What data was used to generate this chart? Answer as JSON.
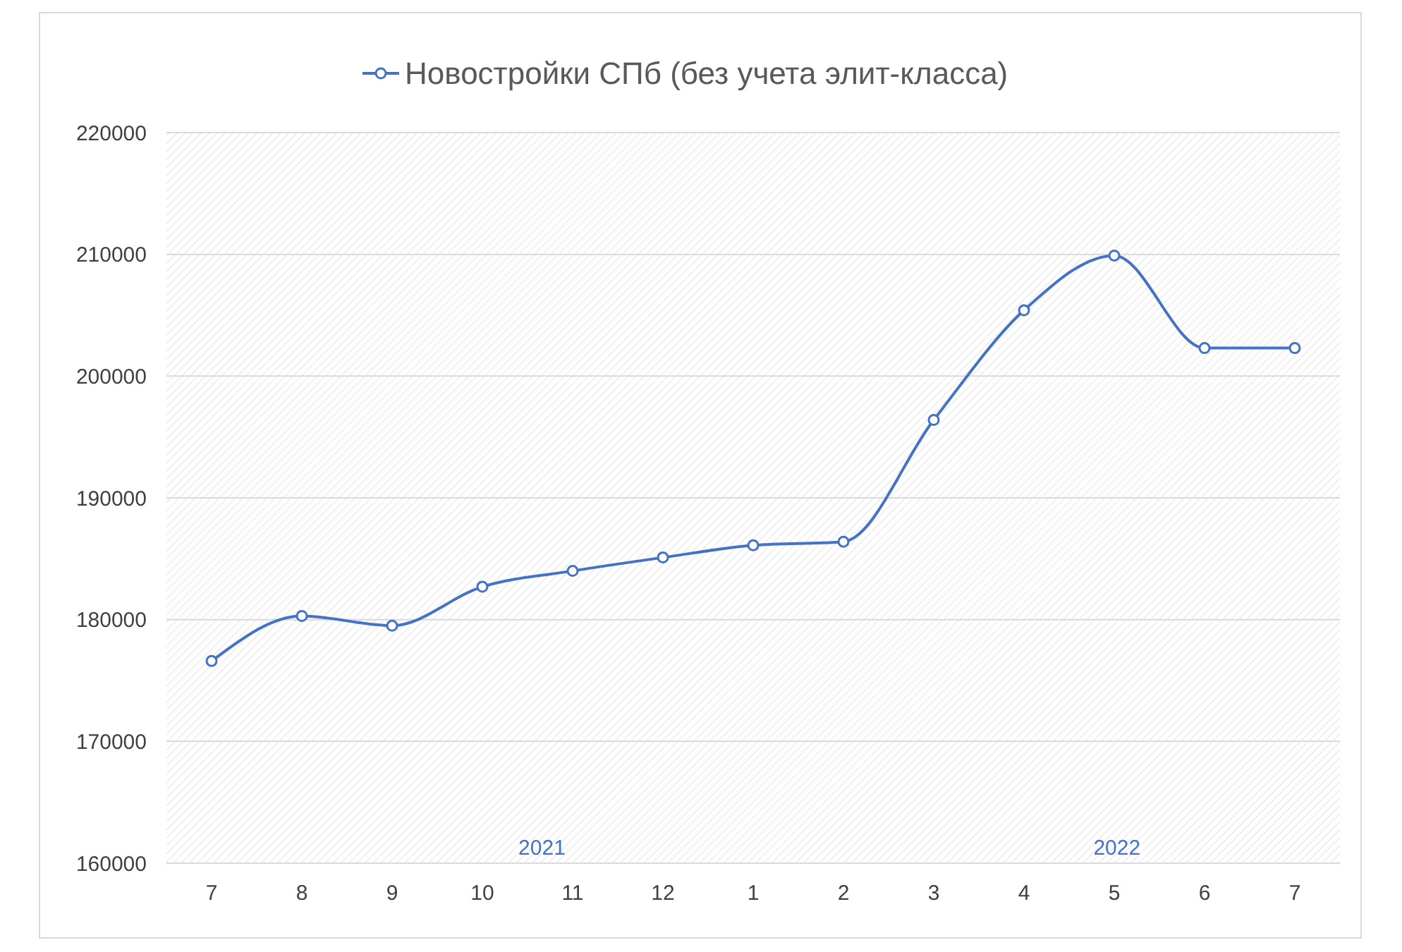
{
  "chart_data": {
    "type": "line",
    "categories": [
      "7",
      "8",
      "9",
      "10",
      "11",
      "12",
      "1",
      "2",
      "3",
      "4",
      "5",
      "6",
      "7"
    ],
    "series": [
      {
        "name": "Новостройки СПб (без учета элит-класса)",
        "color": "#4472c4",
        "values": [
          176600,
          180300,
          179500,
          182700,
          184000,
          185100,
          186100,
          186400,
          196400,
          205400,
          209900,
          202300,
          202300
        ]
      }
    ],
    "ylim": [
      160000,
      220000
    ],
    "yticks": [
      160000,
      170000,
      180000,
      190000,
      200000,
      210000,
      220000
    ],
    "annotations": [
      "2021",
      "2022"
    ],
    "grid": "y",
    "legend": "top",
    "marker": "circle",
    "line_style": "solid"
  }
}
